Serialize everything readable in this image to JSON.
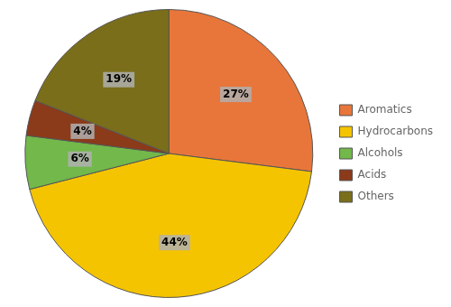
{
  "chart_data": {
    "type": "pie",
    "categories": [
      "Aromatics",
      "Hydrocarbons",
      "Alcohols",
      "Acids",
      "Others"
    ],
    "values": [
      27,
      44,
      6,
      4,
      19
    ],
    "value_labels": [
      "27%",
      "44%",
      "6%",
      "4%",
      "19%"
    ],
    "colors": [
      "#E8763A",
      "#F5C400",
      "#72B84A",
      "#8B3A1A",
      "#7A6E1A"
    ],
    "data_labels": true,
    "legend": "right"
  }
}
